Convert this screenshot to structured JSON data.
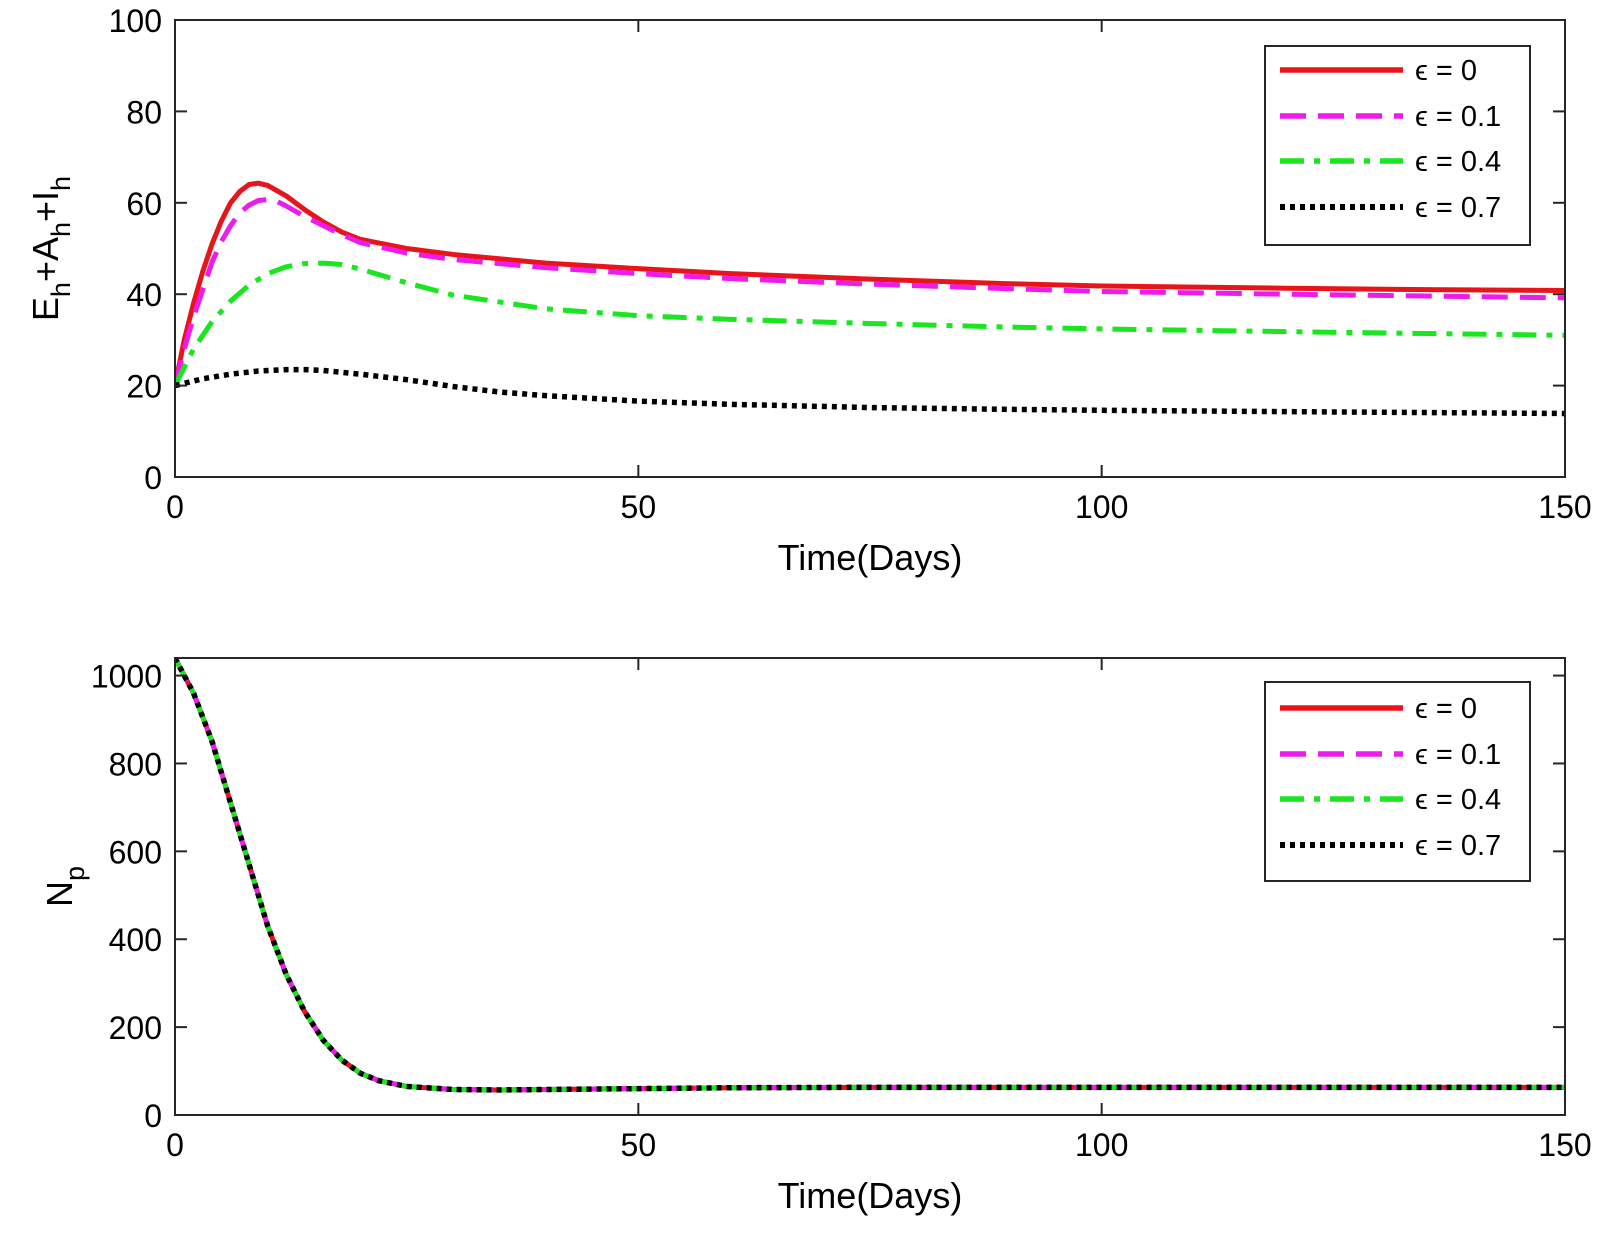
{
  "chart_data": [
    {
      "type": "line",
      "title": "",
      "xlabel": "Time(Days)",
      "ylabel": "E_h+A_h+I_h",
      "ylabel_parts": [
        "E",
        "h",
        "+A",
        "h",
        "+I",
        "h"
      ],
      "xlim": [
        0,
        150
      ],
      "ylim": [
        0,
        100
      ],
      "xticks": [
        0,
        50,
        100,
        150
      ],
      "yticks": [
        0,
        20,
        40,
        60,
        80,
        100
      ],
      "grid": false,
      "legend_position": "top-right",
      "series": [
        {
          "name": "ϵ = 0",
          "color": "#e8141c",
          "dash": "solid",
          "x": [
            0,
            1,
            2,
            3,
            4,
            5,
            6,
            7,
            8,
            9,
            10,
            12,
            14,
            16,
            18,
            20,
            25,
            30,
            40,
            50,
            60,
            75,
            90,
            100,
            120,
            135,
            150
          ],
          "y": [
            20,
            30,
            38,
            45,
            51,
            56,
            60,
            62.5,
            64,
            64.3,
            63.8,
            61.5,
            58.5,
            55.8,
            53.6,
            52,
            50,
            48.7,
            46.8,
            45.6,
            44.5,
            43.3,
            42.3,
            41.8,
            41.3,
            41,
            40.8
          ]
        },
        {
          "name": "ϵ = 0.1",
          "color": "#ec1ced",
          "dash": "dashed",
          "x": [
            0,
            1,
            2,
            3,
            4,
            5,
            6,
            7,
            8,
            9,
            10,
            11,
            12,
            14,
            16,
            18,
            20,
            25,
            30,
            40,
            50,
            60,
            75,
            90,
            100,
            120,
            135,
            150
          ],
          "y": [
            20,
            28,
            35,
            41,
            47,
            51.5,
            55,
            57.8,
            59.5,
            60.5,
            60.7,
            60.3,
            59.3,
            57,
            55,
            53,
            51.3,
            49,
            47.6,
            45.8,
            44.5,
            43.4,
            42.2,
            41.2,
            40.6,
            40,
            39.6,
            39.2
          ]
        },
        {
          "name": "ϵ = 0.4",
          "color": "#19e61e",
          "dash": "dashdot",
          "x": [
            0,
            2,
            4,
            6,
            8,
            10,
            12,
            14,
            16,
            18,
            20,
            25,
            30,
            40,
            50,
            60,
            75,
            90,
            100,
            120,
            135,
            150
          ],
          "y": [
            20,
            28,
            34,
            38.5,
            42,
            44.5,
            46,
            46.7,
            46.8,
            46.5,
            45.5,
            42.5,
            39.8,
            36.8,
            35.3,
            34.5,
            33.6,
            32.8,
            32.4,
            31.8,
            31.4,
            31
          ]
        },
        {
          "name": "ϵ = 0.7",
          "color": "#000000",
          "dash": "dotted",
          "x": [
            0,
            3,
            6,
            9,
            12,
            14,
            16,
            20,
            25,
            30,
            35,
            40,
            50,
            60,
            75,
            90,
            100,
            120,
            135,
            150
          ],
          "y": [
            20,
            21.5,
            22.5,
            23.2,
            23.5,
            23.5,
            23.3,
            22.5,
            21.3,
            19.8,
            18.6,
            17.8,
            16.6,
            15.9,
            15.2,
            14.8,
            14.6,
            14.3,
            14.1,
            13.9
          ]
        }
      ]
    },
    {
      "type": "line",
      "title": "",
      "xlabel": "Time(Days)",
      "ylabel": "N_p",
      "ylabel_parts": [
        "N",
        "p"
      ],
      "xlim": [
        0,
        150
      ],
      "ylim": [
        0,
        1040
      ],
      "xticks": [
        0,
        50,
        100,
        150
      ],
      "yticks": [
        0,
        200,
        400,
        600,
        800,
        1000
      ],
      "grid": false,
      "legend_position": "top-right",
      "series": [
        {
          "name": "ϵ = 0",
          "color": "#e8141c",
          "dash": "solid",
          "x": [
            0,
            2,
            4,
            6,
            8,
            10,
            12,
            14,
            16,
            18,
            20,
            22,
            25,
            30,
            35,
            40,
            50,
            60,
            75,
            100,
            125,
            150
          ],
          "y": [
            1040,
            960,
            850,
            710,
            570,
            430,
            320,
            235,
            170,
            125,
            95,
            78,
            65,
            58,
            57,
            58,
            60,
            62,
            63,
            63,
            63,
            63
          ]
        },
        {
          "name": "ϵ = 0.1",
          "color": "#ec1ced",
          "dash": "dashed",
          "x": [
            0,
            2,
            4,
            6,
            8,
            10,
            12,
            14,
            16,
            18,
            20,
            22,
            25,
            30,
            35,
            40,
            50,
            60,
            75,
            100,
            125,
            150
          ],
          "y": [
            1040,
            960,
            850,
            710,
            570,
            430,
            320,
            235,
            170,
            125,
            95,
            78,
            65,
            58,
            57,
            58,
            60,
            62,
            63,
            63,
            63,
            63
          ]
        },
        {
          "name": "ϵ = 0.4",
          "color": "#19e61e",
          "dash": "dashdot",
          "x": [
            0,
            2,
            4,
            6,
            8,
            10,
            12,
            14,
            16,
            18,
            20,
            22,
            25,
            30,
            35,
            40,
            50,
            60,
            75,
            100,
            125,
            150
          ],
          "y": [
            1040,
            960,
            850,
            710,
            570,
            430,
            320,
            235,
            170,
            125,
            95,
            78,
            65,
            58,
            57,
            58,
            60,
            62,
            63,
            63,
            63,
            63
          ]
        },
        {
          "name": "ϵ = 0.7",
          "color": "#000000",
          "dash": "dotted",
          "x": [
            0,
            2,
            4,
            6,
            8,
            10,
            12,
            14,
            16,
            18,
            20,
            22,
            25,
            30,
            35,
            40,
            50,
            60,
            75,
            100,
            125,
            150
          ],
          "y": [
            1040,
            960,
            850,
            710,
            570,
            430,
            320,
            235,
            170,
            125,
            95,
            78,
            65,
            58,
            57,
            58,
            60,
            62,
            63,
            63,
            63,
            63
          ]
        }
      ]
    }
  ]
}
